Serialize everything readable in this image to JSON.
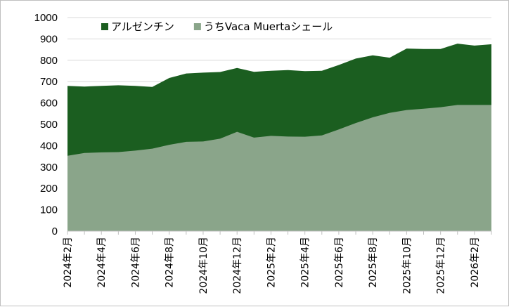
{
  "chart_data": {
    "type": "area",
    "stacked": false,
    "title": "",
    "xlabel": "",
    "ylabel": "",
    "ylim": [
      0,
      1000
    ],
    "ytick_step": 100,
    "grid": "horizontal",
    "legend_position": "top-left",
    "x": [
      "2024年2月",
      "2024年3月",
      "2024年4月",
      "2024年5月",
      "2024年6月",
      "2024年7月",
      "2024年8月",
      "2024年9月",
      "2024年10月",
      "2024年11月",
      "2024年12月",
      "2025年1月",
      "2025年2月",
      "2025年3月",
      "2025年4月",
      "2025年5月",
      "2025年6月",
      "2025年7月",
      "2025年8月",
      "2025年9月",
      "2025年10月",
      "2025年11月",
      "2025年12月",
      "2026年1月",
      "2026年2月",
      "2026年3月"
    ],
    "x_tick_labels": [
      "2024年2月",
      "2024年4月",
      "2024年6月",
      "2024年8月",
      "2024年10月",
      "2024年12月",
      "2025年2月",
      "2025年4月",
      "2025年6月",
      "2025年8月",
      "2025年10月",
      "2025年12月",
      "2026年2月"
    ],
    "series": [
      {
        "name": "アルゼンチン",
        "color": "#1b5e20",
        "values": [
          680,
          677,
          680,
          683,
          680,
          675,
          717,
          738,
          742,
          745,
          764,
          746,
          751,
          754,
          749,
          751,
          778,
          808,
          823,
          812,
          855,
          853,
          853,
          878,
          869,
          875
        ]
      },
      {
        "name": "うちVaca Muertaシェール",
        "color": "#8aa58a",
        "values": [
          353,
          366,
          369,
          370,
          377,
          386,
          404,
          418,
          420,
          433,
          465,
          438,
          446,
          443,
          442,
          448,
          476,
          506,
          533,
          554,
          567,
          573,
          580,
          591,
          591,
          591
        ]
      }
    ]
  }
}
